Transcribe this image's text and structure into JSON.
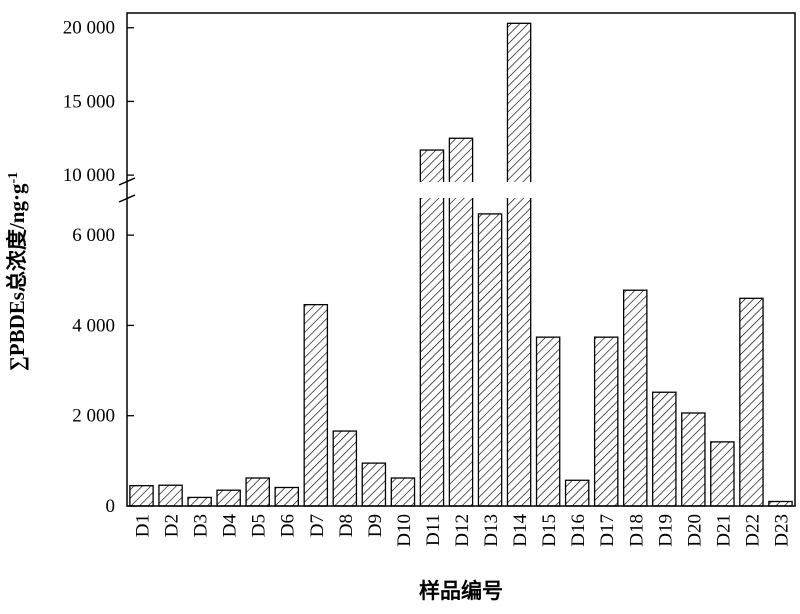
{
  "chart_data": {
    "type": "bar",
    "categories": [
      "D1",
      "D2",
      "D3",
      "D4",
      "D5",
      "D6",
      "D7",
      "D8",
      "D9",
      "D10",
      "D11",
      "D12",
      "D13",
      "D14",
      "D15",
      "D16",
      "D17",
      "D18",
      "D19",
      "D20",
      "D21",
      "D22",
      "D23"
    ],
    "values": [
      450,
      460,
      190,
      350,
      620,
      410,
      4460,
      1660,
      950,
      620,
      11700,
      12500,
      6470,
      20300,
      3740,
      570,
      3740,
      4780,
      2520,
      2060,
      1420,
      4600,
      100
    ],
    "xlabel": "样品编号",
    "ylabel": "∑PBDEs总浓度/ng·g⁻¹",
    "ylabel_main": "∑PBDEs总浓度/ng·g",
    "ylabel_sup": "-1",
    "y_axis_break": {
      "lower_range": [
        0,
        6800
      ],
      "upper_range": [
        9600,
        21000
      ]
    },
    "y_ticks": [
      {
        "value": 0,
        "label": "0"
      },
      {
        "value": 2000,
        "label": "2 000"
      },
      {
        "value": 4000,
        "label": "4 000"
      },
      {
        "value": 6000,
        "label": "6 000"
      },
      {
        "value": 10000,
        "label": "10 000"
      },
      {
        "value": 15000,
        "label": "15 000"
      },
      {
        "value": 20000,
        "label": "20 000"
      }
    ],
    "fill_pattern": "diagonal-hatch",
    "colors": {
      "bar_stroke": "#000000",
      "bar_fill": "#ffffff",
      "hatch": "#000000"
    },
    "grid": false,
    "legend": "none"
  }
}
